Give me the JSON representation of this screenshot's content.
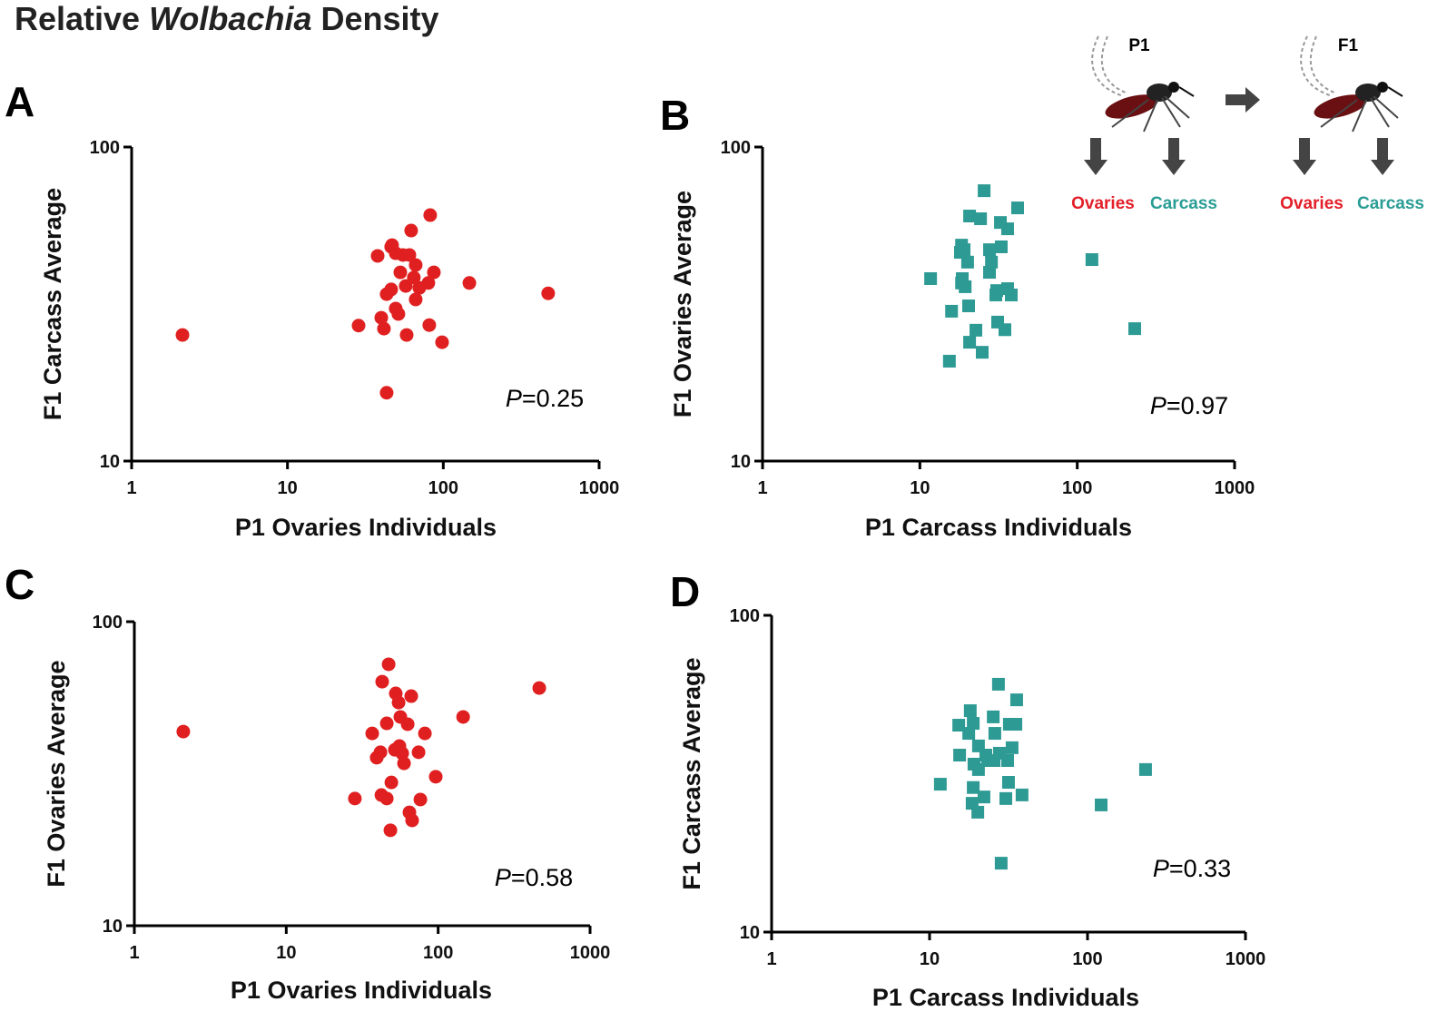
{
  "title": [
    "Relative",
    "Wolbachia",
    "Density"
  ],
  "schematic": {
    "generations": [
      "P1",
      "F1"
    ],
    "tissues": [
      {
        "text": "Ovaries",
        "color": "#e3202a"
      },
      {
        "text": "Carcass",
        "color": "#2a9d95"
      }
    ]
  },
  "chart_data": [
    {
      "type": "scatter",
      "panel": "A",
      "xlabel": "P1 Ovaries Individuals",
      "ylabel": "F1 Carcass Average",
      "annotation": [
        "P",
        "=0.25"
      ],
      "marker": "circle",
      "color": "#e02020",
      "log_x": true,
      "log_y": true,
      "xlim": [
        1,
        1000
      ],
      "ylim": [
        10,
        100
      ],
      "xticks": [
        1,
        10,
        100,
        1000
      ],
      "yticks": [
        10,
        100
      ],
      "x": [
        2.12,
        82.4,
        37.9,
        46.3,
        55.1,
        62.2,
        49.5,
        46.9,
        60.6,
        66.5,
        53.0,
        64.7,
        46.3,
        43.3,
        57.4,
        70.2,
        80.2,
        87.0,
        66.5,
        49.5,
        28.6,
        40.0,
        41.6,
        51.5,
        58.2,
        81.3,
        98.2,
        147,
        471,
        43.3
      ],
      "values": [
        25.2,
        60.7,
        45.0,
        48.1,
        45.3,
        54.2,
        45.9,
        48.7,
        45.3,
        42.1,
        39.9,
        38.4,
        35.2,
        34.0,
        36.1,
        35.6,
        36.9,
        39.9,
        32.7,
        30.6,
        27.0,
        28.6,
        26.4,
        29.4,
        25.2,
        27.1,
        23.9,
        36.9,
        34.2,
        16.5
      ]
    },
    {
      "type": "scatter",
      "panel": "B",
      "xlabel": "P1 Carcass Individuals",
      "ylabel": "F1 Ovaries Average",
      "annotation": [
        "P",
        "=0.97"
      ],
      "marker": "square",
      "color": "#2e9a94",
      "log_x": true,
      "log_y": true,
      "xlim": [
        1,
        1000
      ],
      "ylim": [
        10,
        100
      ],
      "xticks": [
        1,
        10,
        100,
        1000
      ],
      "yticks": [
        10,
        100
      ],
      "x": [
        11.7,
        25.6,
        20.7,
        24.3,
        41.8,
        32.5,
        36.1,
        18.4,
        19.1,
        18.1,
        27.7,
        32.9,
        20.1,
        28.5,
        18.6,
        18.4,
        19.4,
        27.7,
        30.8,
        36.1,
        38.1,
        30.4,
        20.4,
        15.9,
        22.7,
        31.2,
        34.7,
        20.7,
        24.9,
        15.4,
        124,
        232
      ],
      "values": [
        38.1,
        72.6,
        60.3,
        59.1,
        64.0,
        57.5,
        54.9,
        48.7,
        47.1,
        46.2,
        47.1,
        48.1,
        43.0,
        43.0,
        38.1,
        36.9,
        35.9,
        39.9,
        34.9,
        35.4,
        33.8,
        33.8,
        31.2,
        30.0,
        26.1,
        27.7,
        26.2,
        23.9,
        22.2,
        20.8,
        43.8,
        26.4
      ]
    },
    {
      "type": "scatter",
      "panel": "C",
      "xlabel": "P1 Ovaries Individuals",
      "ylabel": "F1 Ovaries Average",
      "annotation": [
        "P",
        "=0.58"
      ],
      "marker": "circle",
      "color": "#e02020",
      "log_x": true,
      "log_y": true,
      "xlim": [
        1,
        1000
      ],
      "ylim": [
        10,
        100
      ],
      "xticks": [
        1,
        10,
        100,
        1000
      ],
      "yticks": [
        10,
        100
      ],
      "x": [
        2.1,
        47.2,
        42.8,
        52.6,
        54.9,
        66.5,
        36.8,
        45.9,
        56.4,
        63.0,
        81.8,
        41.7,
        39.4,
        51.9,
        58.0,
        55.6,
        59.6,
        74.3,
        96.4,
        49.2,
        28.3,
        42.3,
        45.9,
        76.4,
        64.7,
        67.4,
        48.5,
        146,
        463
      ],
      "values": [
        43.5,
        72.4,
        63.5,
        58.1,
        54.2,
        56.9,
        42.9,
        46.3,
        48.6,
        46.0,
        42.9,
        37.2,
        35.7,
        37.9,
        36.9,
        39.0,
        34.2,
        37.2,
        30.9,
        29.6,
        26.2,
        26.9,
        26.2,
        26.0,
        23.6,
        22.2,
        20.6,
        48.6,
        60.5
      ]
    },
    {
      "type": "scatter",
      "panel": "D",
      "xlabel": "P1 Carcass Individuals",
      "ylabel": "F1 Carcass Average",
      "annotation": [
        "P",
        "=0.33"
      ],
      "marker": "square",
      "color": "#2e9a94",
      "log_x": true,
      "log_y": true,
      "xlim": [
        1,
        1000
      ],
      "ylim": [
        10,
        100
      ],
      "xticks": [
        1,
        10,
        100,
        1000
      ],
      "yticks": [
        10,
        100
      ],
      "x": [
        11.7,
        27.3,
        18.1,
        25.3,
        35.6,
        32.0,
        35.2,
        15.3,
        18.9,
        17.7,
        25.9,
        20.4,
        15.5,
        22.7,
        27.7,
        25.6,
        33.3,
        31.2,
        19.1,
        23.3,
        20.4,
        18.9,
        31.6,
        22.1,
        30.4,
        38.5,
        18.6,
        20.2,
        28.4,
        122,
        233
      ],
      "values": [
        29.3,
        60.6,
        50.0,
        47.8,
        54.1,
        45.3,
        45.3,
        45.0,
        45.6,
        42.4,
        42.4,
        38.7,
        36.2,
        36.2,
        36.7,
        34.8,
        38.2,
        34.8,
        33.9,
        34.8,
        32.6,
        28.6,
        29.7,
        26.7,
        26.4,
        27.1,
        25.5,
        23.9,
        16.5,
        25.2,
        32.6
      ]
    }
  ]
}
